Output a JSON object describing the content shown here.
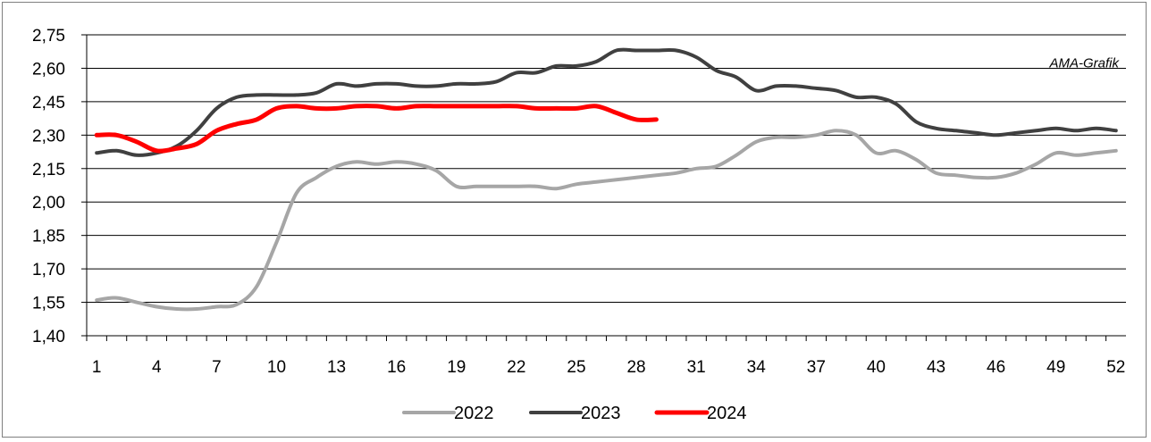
{
  "chart_data": {
    "type": "line",
    "title": "",
    "xlabel": "",
    "ylabel": "",
    "watermark": "AMA-Grafik",
    "ylim": [
      1.4,
      2.75
    ],
    "yticks": [
      "1,40",
      "1,55",
      "1,70",
      "1,85",
      "2,00",
      "2,15",
      "2,30",
      "2,45",
      "2,60",
      "2,75"
    ],
    "xlim": [
      1,
      52
    ],
    "xticks": [
      "1",
      "4",
      "7",
      "10",
      "13",
      "16",
      "19",
      "22",
      "25",
      "28",
      "31",
      "34",
      "37",
      "40",
      "43",
      "46",
      "49",
      "52"
    ],
    "grid": "horizontal",
    "legend_position": "bottom",
    "series": [
      {
        "name": "2022",
        "color": "#a6a6a6",
        "x": [
          1,
          2,
          3,
          4,
          5,
          6,
          7,
          8,
          9,
          10,
          11,
          12,
          13,
          14,
          15,
          16,
          17,
          18,
          19,
          20,
          21,
          22,
          23,
          24,
          25,
          26,
          27,
          28,
          29,
          30,
          31,
          32,
          33,
          34,
          35,
          36,
          37,
          38,
          39,
          40,
          41,
          42,
          43,
          44,
          45,
          46,
          47,
          48,
          49,
          50,
          51,
          52
        ],
        "values": [
          1.56,
          1.57,
          1.55,
          1.53,
          1.52,
          1.52,
          1.53,
          1.54,
          1.62,
          1.82,
          2.04,
          2.11,
          2.16,
          2.18,
          2.17,
          2.18,
          2.17,
          2.14,
          2.07,
          2.07,
          2.07,
          2.07,
          2.07,
          2.06,
          2.08,
          2.09,
          2.1,
          2.11,
          2.12,
          2.13,
          2.15,
          2.16,
          2.21,
          2.27,
          2.29,
          2.29,
          2.3,
          2.32,
          2.3,
          2.22,
          2.23,
          2.19,
          2.13,
          2.12,
          2.11,
          2.11,
          2.13,
          2.17,
          2.22,
          2.21,
          2.22,
          2.23
        ]
      },
      {
        "name": "2023",
        "color": "#404040",
        "x": [
          1,
          2,
          3,
          4,
          5,
          6,
          7,
          8,
          9,
          10,
          11,
          12,
          13,
          14,
          15,
          16,
          17,
          18,
          19,
          20,
          21,
          22,
          23,
          24,
          25,
          26,
          27,
          28,
          29,
          30,
          31,
          32,
          33,
          34,
          35,
          36,
          37,
          38,
          39,
          40,
          41,
          42,
          43,
          44,
          45,
          46,
          47,
          48,
          49,
          50,
          51,
          52
        ],
        "values": [
          2.22,
          2.23,
          2.21,
          2.22,
          2.25,
          2.32,
          2.42,
          2.47,
          2.48,
          2.48,
          2.48,
          2.49,
          2.53,
          2.52,
          2.53,
          2.53,
          2.52,
          2.52,
          2.53,
          2.53,
          2.54,
          2.58,
          2.58,
          2.61,
          2.61,
          2.63,
          2.68,
          2.68,
          2.68,
          2.68,
          2.65,
          2.59,
          2.56,
          2.5,
          2.52,
          2.52,
          2.51,
          2.5,
          2.47,
          2.47,
          2.44,
          2.36,
          2.33,
          2.32,
          2.31,
          2.3,
          2.31,
          2.32,
          2.33,
          2.32,
          2.33,
          2.32
        ]
      },
      {
        "name": "2024",
        "color": "#ff0000",
        "x": [
          1,
          2,
          3,
          4,
          5,
          6,
          7,
          8,
          9,
          10,
          11,
          12,
          13,
          14,
          15,
          16,
          17,
          18,
          19,
          20,
          21,
          22,
          23,
          24,
          25,
          26,
          27,
          28,
          29
        ],
        "values": [
          2.3,
          2.3,
          2.27,
          2.23,
          2.24,
          2.26,
          2.32,
          2.35,
          2.37,
          2.42,
          2.43,
          2.42,
          2.42,
          2.43,
          2.43,
          2.42,
          2.43,
          2.43,
          2.43,
          2.43,
          2.43,
          2.43,
          2.42,
          2.42,
          2.42,
          2.43,
          2.4,
          2.37,
          2.37
        ]
      }
    ]
  }
}
